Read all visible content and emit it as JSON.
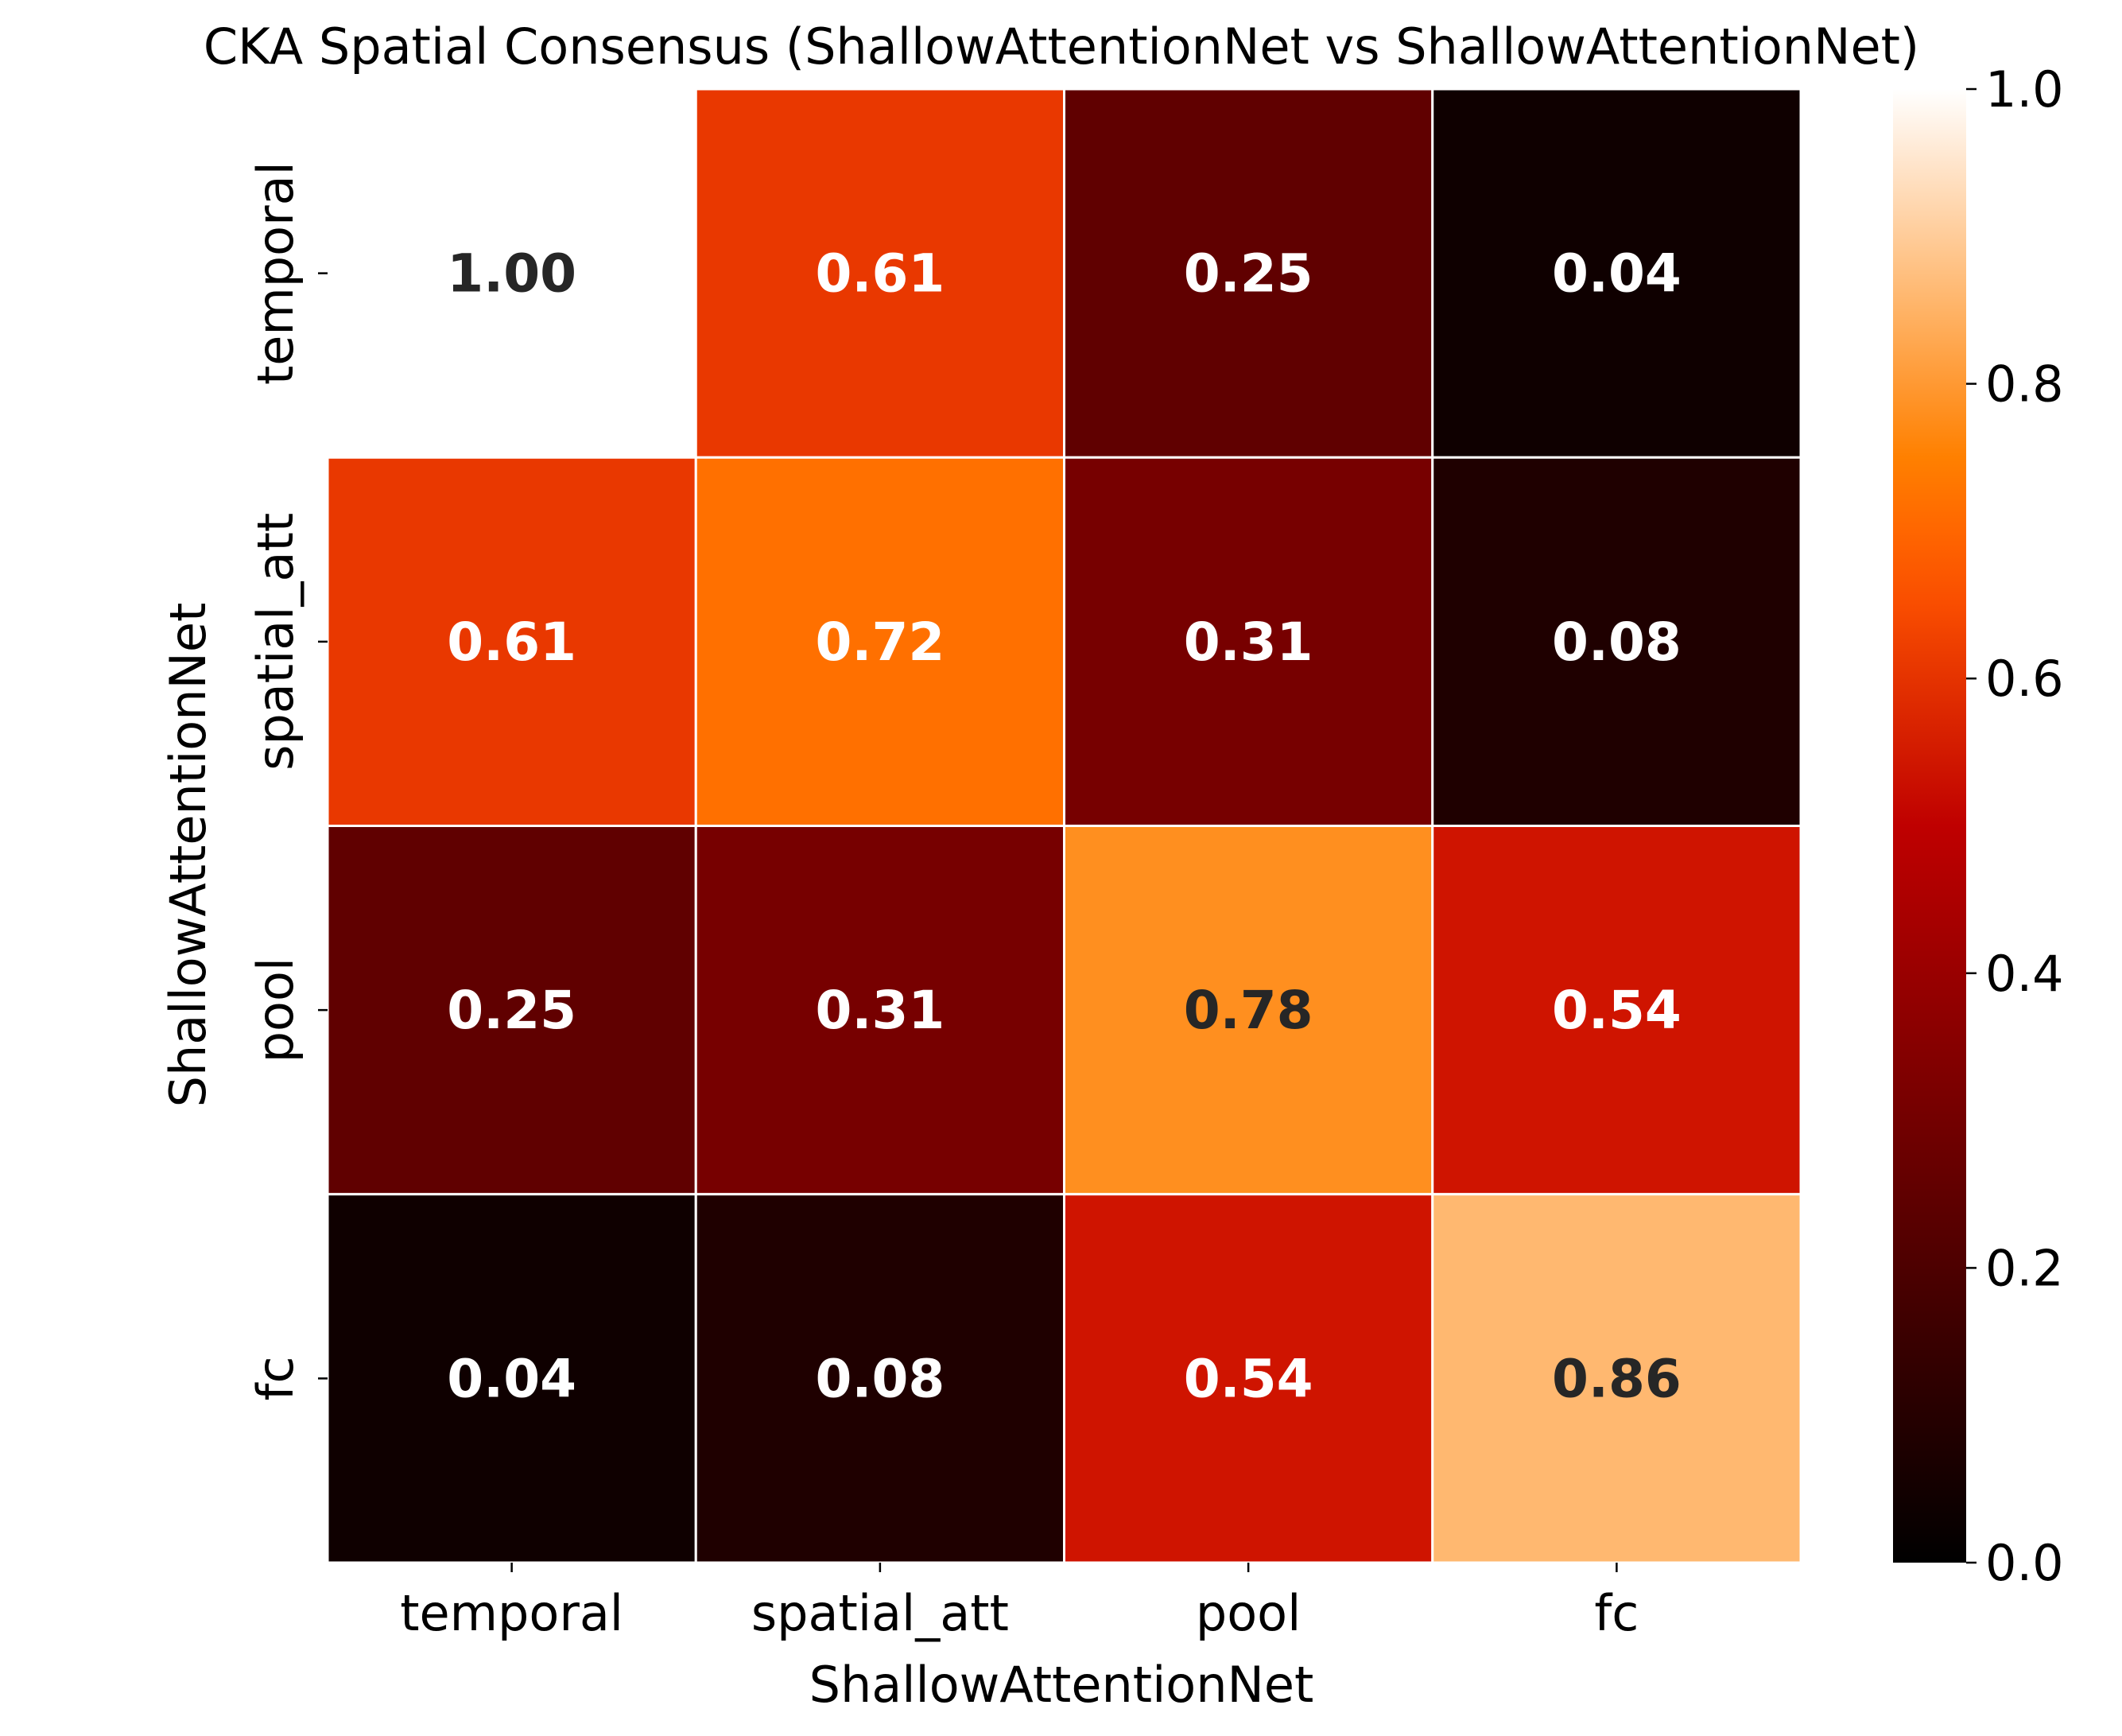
{
  "chart_data": {
    "type": "heatmap",
    "title": "CKA Spatial Consensus (ShallowAttentionNet vs ShallowAttentionNet)",
    "xlabel": "ShallowAttentionNet",
    "ylabel": "ShallowAttentionNet",
    "x_categories": [
      "temporal",
      "spatial_att",
      "pool",
      "fc"
    ],
    "y_categories": [
      "temporal",
      "spatial_att",
      "pool",
      "fc"
    ],
    "values": [
      [
        1.0,
        0.61,
        0.25,
        0.04
      ],
      [
        0.61,
        0.72,
        0.31,
        0.08
      ],
      [
        0.25,
        0.31,
        0.78,
        0.54
      ],
      [
        0.04,
        0.08,
        0.54,
        0.86
      ]
    ],
    "annotations": [
      [
        "1.00",
        "0.61",
        "0.25",
        "0.04"
      ],
      [
        "0.61",
        "0.72",
        "0.31",
        "0.08"
      ],
      [
        "0.25",
        "0.31",
        "0.78",
        "0.54"
      ],
      [
        "0.04",
        "0.08",
        "0.54",
        "0.86"
      ]
    ],
    "colorbar": {
      "range": [
        0.0,
        1.0
      ],
      "ticks": [
        "0.0",
        "0.2",
        "0.4",
        "0.6",
        "0.8",
        "1.0"
      ],
      "colormap": "gist_heat",
      "placement": "right"
    },
    "grid": false,
    "annotation_colors": {
      "light_cell": "#262626",
      "dark_cell": "#ffffff"
    },
    "cell_border_color": "#ffffff"
  }
}
